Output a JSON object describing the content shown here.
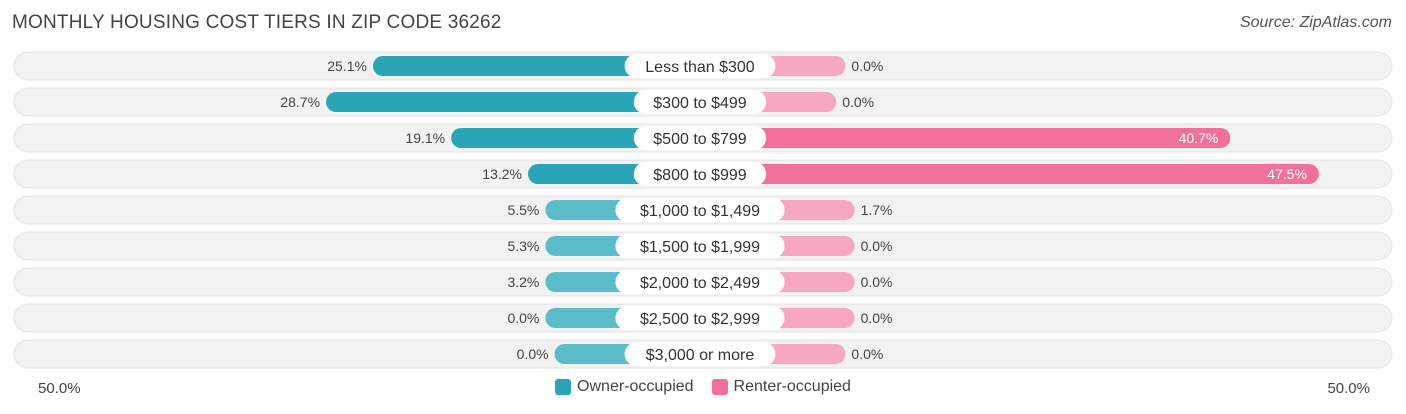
{
  "title": "MONTHLY HOUSING COST TIERS IN ZIP CODE 36262",
  "source": "Source: ZipAtlas.com",
  "colors": {
    "owner": "#5bbcca",
    "owner_dark": "#2aa6b8",
    "renter": "#f7a8c0",
    "renter_dark": "#f07099",
    "row_bg": "#f2f2f2",
    "row_border": "#e2e2e2"
  },
  "chart_data": {
    "type": "bar",
    "orientation": "horizontal-diverging",
    "categories": [
      "Less than $300",
      "$300 to $499",
      "$500 to $799",
      "$800 to $999",
      "$1,000 to $1,499",
      "$1,500 to $1,999",
      "$2,000 to $2,499",
      "$2,500 to $2,999",
      "$3,000 or more"
    ],
    "series": [
      {
        "name": "Owner-occupied",
        "values": [
          25.1,
          28.7,
          19.1,
          13.2,
          5.5,
          5.3,
          3.2,
          0.0,
          0.0
        ],
        "labels": [
          "25.1%",
          "28.7%",
          "19.1%",
          "13.2%",
          "5.5%",
          "5.3%",
          "3.2%",
          "0.0%",
          "0.0%"
        ]
      },
      {
        "name": "Renter-occupied",
        "values": [
          0.0,
          0.0,
          40.7,
          47.5,
          1.7,
          0.0,
          0.0,
          0.0,
          0.0
        ],
        "labels": [
          "0.0%",
          "0.0%",
          "40.7%",
          "47.5%",
          "1.7%",
          "0.0%",
          "0.0%",
          "0.0%",
          "0.0%"
        ]
      }
    ],
    "xlim": [
      -50,
      50
    ],
    "axis_left_label": "50.0%",
    "axis_right_label": "50.0%",
    "legend_position": "bottom-center"
  }
}
